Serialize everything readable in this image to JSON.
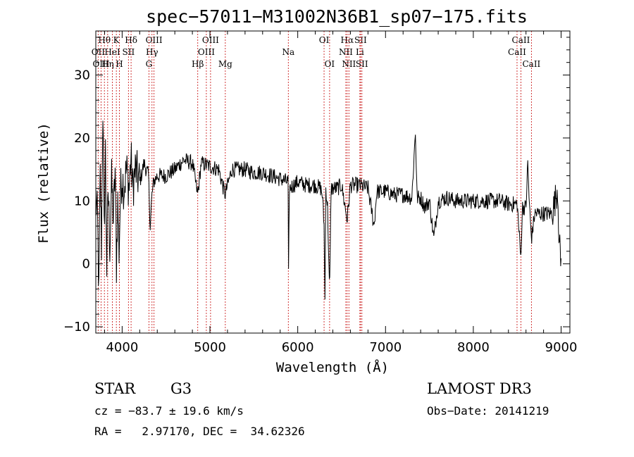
{
  "chart_data": {
    "type": "line",
    "title": "spec−57011−M31002N36B1_sp07−175.fits",
    "xlabel": "Wavelength (Å)",
    "ylabel": "Flux (relative)",
    "xlim": [
      3700,
      9100
    ],
    "ylim": [
      -11,
      37
    ],
    "x_ticks": [
      4000,
      5000,
      6000,
      7000,
      8000,
      9000
    ],
    "x_tick_labels": [
      "4000",
      "5000",
      "6000",
      "7000",
      "8000",
      "9000"
    ],
    "y_ticks": [
      -10,
      0,
      10,
      20,
      30
    ],
    "y_tick_labels": [
      "−10",
      "0",
      "10",
      "20",
      "30"
    ],
    "series": [
      {
        "name": "flux",
        "anchors": [
          [
            3700,
            10
          ],
          [
            3720,
            7
          ],
          [
            3735,
            -5
          ],
          [
            3750,
            14
          ],
          [
            3765,
            3
          ],
          [
            3780,
            25
          ],
          [
            3795,
            5
          ],
          [
            3810,
            18
          ],
          [
            3825,
            -1
          ],
          [
            3840,
            12
          ],
          [
            3860,
            3
          ],
          [
            3880,
            13
          ],
          [
            3900,
            7
          ],
          [
            3920,
            15
          ],
          [
            3935,
            0
          ],
          [
            3950,
            10
          ],
          [
            3965,
            2
          ],
          [
            3980,
            11
          ],
          [
            4000,
            14
          ],
          [
            4020,
            12
          ],
          [
            4050,
            15
          ],
          [
            4080,
            12
          ],
          [
            4100,
            17
          ],
          [
            4120,
            12
          ],
          [
            4150,
            15
          ],
          [
            4200,
            13
          ],
          [
            4250,
            16
          ],
          [
            4300,
            14
          ],
          [
            4320,
            6
          ],
          [
            4340,
            11
          ],
          [
            4360,
            13
          ],
          [
            4400,
            14
          ],
          [
            4500,
            14
          ],
          [
            4600,
            15
          ],
          [
            4700,
            16.5
          ],
          [
            4800,
            16
          ],
          [
            4861,
            11
          ],
          [
            4900,
            16
          ],
          [
            5000,
            15.5
          ],
          [
            5100,
            15
          ],
          [
            5172,
            11
          ],
          [
            5250,
            15
          ],
          [
            5400,
            15
          ],
          [
            5500,
            14.5
          ],
          [
            5600,
            14.5
          ],
          [
            5700,
            14
          ],
          [
            5800,
            13.5
          ],
          [
            5890,
            13
          ],
          [
            5895,
            -2
          ],
          [
            5905,
            12
          ],
          [
            6000,
            13
          ],
          [
            6100,
            12.5
          ],
          [
            6200,
            12.5
          ],
          [
            6260,
            12
          ],
          [
            6280,
            11
          ],
          [
            6300,
            6
          ],
          [
            6310,
            -6
          ],
          [
            6320,
            12
          ],
          [
            6340,
            9
          ],
          [
            6363,
            -5
          ],
          [
            6380,
            12
          ],
          [
            6450,
            12
          ],
          [
            6500,
            12.5
          ],
          [
            6563,
            7
          ],
          [
            6600,
            12.5
          ],
          [
            6700,
            12.5
          ],
          [
            6800,
            12
          ],
          [
            6870,
            6
          ],
          [
            6900,
            11.5
          ],
          [
            7000,
            11.5
          ],
          [
            7100,
            11
          ],
          [
            7200,
            11
          ],
          [
            7300,
            10.5
          ],
          [
            7340,
            21
          ],
          [
            7360,
            10.5
          ],
          [
            7400,
            10.5
          ],
          [
            7450,
            9
          ],
          [
            7500,
            10
          ],
          [
            7550,
            4
          ],
          [
            7600,
            10
          ],
          [
            7700,
            10.5
          ],
          [
            7800,
            10
          ],
          [
            7900,
            10
          ],
          [
            8000,
            10
          ],
          [
            8100,
            10
          ],
          [
            8200,
            10
          ],
          [
            8300,
            10
          ],
          [
            8400,
            9.5
          ],
          [
            8500,
            9.5
          ],
          [
            8540,
            1
          ],
          [
            8560,
            9
          ],
          [
            8600,
            9
          ],
          [
            8620,
            16
          ],
          [
            8640,
            9
          ],
          [
            8662,
            4
          ],
          [
            8700,
            8
          ],
          [
            8800,
            8
          ],
          [
            8900,
            8
          ],
          [
            8960,
            12
          ],
          [
            8980,
            3
          ],
          [
            9000,
            0
          ]
        ],
        "noise_sigma": 1.3
      }
    ],
    "spectral_lines": [
      {
        "name": "Hθ",
        "wavelength": 3798,
        "row": 0
      },
      {
        "name": "OII",
        "wavelength": 3727,
        "row": 1
      },
      {
        "name": "OIII",
        "wavelength": 3760,
        "row": 2
      },
      {
        "name": "K",
        "wavelength": 3934,
        "row": 0
      },
      {
        "name": "HeI",
        "wavelength": 3889,
        "row": 1
      },
      {
        "name": "Hη",
        "wavelength": 3835,
        "row": 2
      },
      {
        "name": "H",
        "wavelength": 3969,
        "row": 2
      },
      {
        "name": "Hδ",
        "wavelength": 4102,
        "row": 0
      },
      {
        "name": "SII",
        "wavelength": 4072,
        "row": 1
      },
      {
        "name": "OIII",
        "wavelength": 4363,
        "row": 0
      },
      {
        "name": "Hγ",
        "wavelength": 4340,
        "row": 1
      },
      {
        "name": "G",
        "wavelength": 4305,
        "row": 2
      },
      {
        "name": "Hβ",
        "wavelength": 4861,
        "row": 2
      },
      {
        "name": "OIII",
        "wavelength": 5007,
        "row": 0
      },
      {
        "name": "OIII",
        "wavelength": 4959,
        "row": 1
      },
      {
        "name": "Mg",
        "wavelength": 5175,
        "row": 2
      },
      {
        "name": "Na",
        "wavelength": 5893,
        "row": 1
      },
      {
        "name": "OI",
        "wavelength": 6300,
        "row": 0
      },
      {
        "name": "OI",
        "wavelength": 6363,
        "row": 2
      },
      {
        "name": "Hα",
        "wavelength": 6563,
        "row": 0
      },
      {
        "name": "SII",
        "wavelength": 6716,
        "row": 0
      },
      {
        "name": "NII",
        "wavelength": 6548,
        "row": 1
      },
      {
        "name": "Li",
        "wavelength": 6708,
        "row": 1
      },
      {
        "name": "NII",
        "wavelength": 6583,
        "row": 2
      },
      {
        "name": "SII",
        "wavelength": 6731,
        "row": 2
      },
      {
        "name": "CaII",
        "wavelength": 8542,
        "row": 0
      },
      {
        "name": "CaII",
        "wavelength": 8498,
        "row": 1
      },
      {
        "name": "CaII",
        "wavelength": 8662,
        "row": 2
      }
    ],
    "line_color": "#cc2222",
    "spectrum_color": "#000000"
  },
  "info": {
    "object_class": "STAR",
    "subclass": "G3",
    "survey": "LAMOST DR3",
    "redshift": "cz = −83.7 ± 19.6 km/s",
    "obs_date": "Obs−Date: 20141219",
    "coords": "RA =   2.97170, DEC =  34.62326"
  }
}
